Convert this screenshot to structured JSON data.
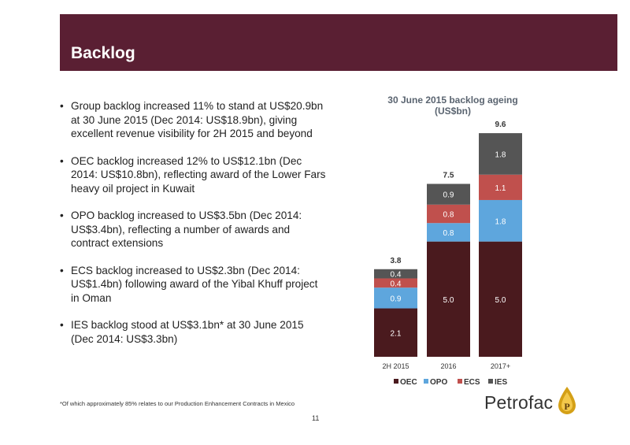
{
  "slide": {
    "title": "Backlog",
    "bullets": [
      "Group backlog increased 11% to stand at US$20.9bn at 30 June 2015 (Dec 2014: US$18.9bn), giving excellent revenue visibility for 2H 2015 and beyond",
      "OEC backlog increased 12% to US$12.1bn (Dec 2014: US$10.8bn), reflecting award of the Lower Fars heavy oil project in Kuwait",
      "OPO backlog increased to US$3.5bn (Dec 2014: US$3.4bn), reflecting a number of awards and contract extensions",
      "ECS backlog increased to US$2.3bn (Dec 2014: US$1.4bn) following award of the Yibal Khuff project in Oman",
      "IES backlog stood at US$3.1bn* at 30 June 2015 (Dec 2014: US$3.3bn)"
    ],
    "footnote": "*Of which approximately 85% relates to our Production Enhancement Contracts in Mexico",
    "page_number": "11",
    "logo_text": "Petrofac"
  },
  "chart_data": {
    "type": "bar",
    "stacked": true,
    "title": "30 June 2015 backlog ageing",
    "subtitle": "(US$bn)",
    "categories": [
      "2H 2015",
      "2016",
      "2017+"
    ],
    "series": [
      {
        "name": "OEC",
        "color": "#4a1a1e",
        "values": [
          2.1,
          5.0,
          5.0
        ]
      },
      {
        "name": "OPO",
        "color": "#5ea6dd",
        "values": [
          0.9,
          0.8,
          1.8
        ]
      },
      {
        "name": "ECS",
        "color": "#c0504d",
        "values": [
          0.4,
          0.8,
          1.1
        ]
      },
      {
        "name": "IES",
        "color": "#555555",
        "values": [
          0.4,
          0.9,
          1.8
        ]
      }
    ],
    "totals": [
      "3.8",
      "7.5",
      "9.6"
    ],
    "value_labels": [
      [
        "2.1",
        "5.0",
        "5.0"
      ],
      [
        "0.9",
        "0.8",
        "1.8"
      ],
      [
        "0.4",
        "0.8",
        "1.1"
      ],
      [
        "0.4",
        "0.9",
        "1.8"
      ]
    ],
    "legend_position": "bottom",
    "grid": false,
    "ylim": [
      0,
      9.6
    ]
  }
}
